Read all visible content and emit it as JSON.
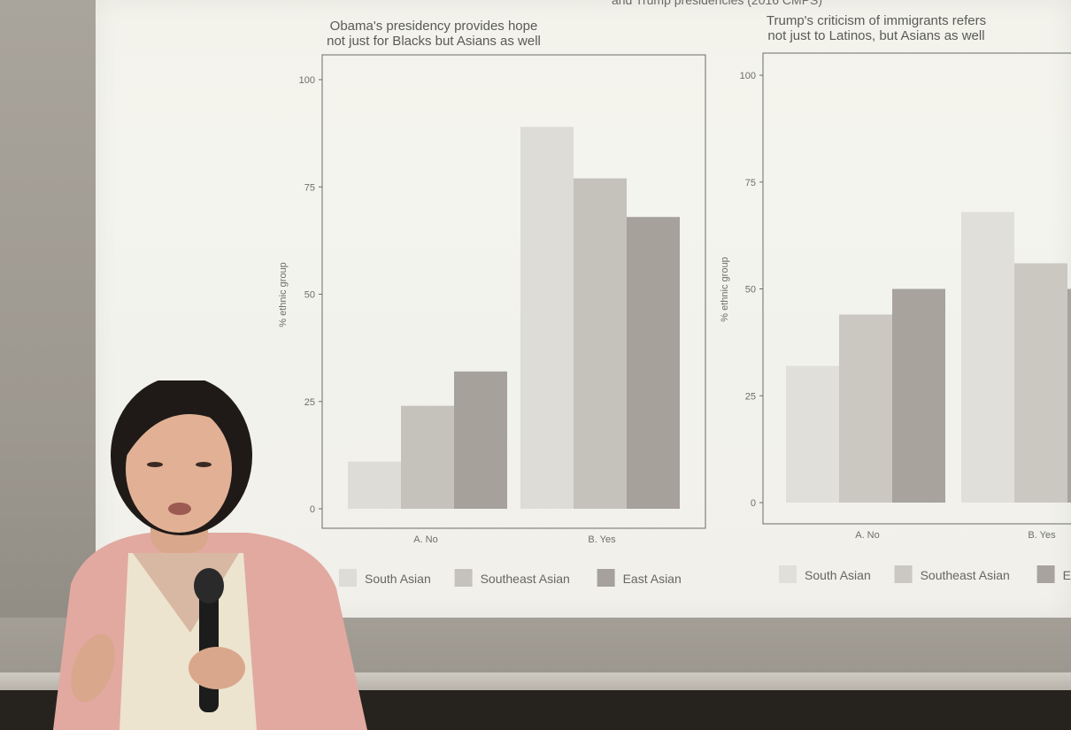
{
  "slide": {
    "cut_title": "and Trump presidencies (2016 CMPS)"
  },
  "chart_data": [
    {
      "type": "bar",
      "title": "Obama's presidency provides hope\nnot just for Blacks but Asians as well",
      "ylabel": "% ethnic group",
      "ylim": [
        0,
        100
      ],
      "yticks": [
        0,
        25,
        50,
        75,
        100
      ],
      "categories": [
        "A. No",
        "B. Yes"
      ],
      "series": [
        {
          "name": "South Asian",
          "values": [
            11,
            89
          ]
        },
        {
          "name": "Southeast Asian",
          "values": [
            24,
            77
          ]
        },
        {
          "name": "East Asian",
          "values": [
            32,
            68
          ]
        }
      ],
      "legend_position": "bottom",
      "colors": [
        "#dddcd6",
        "#c4c2bb",
        "#a6a19b"
      ]
    },
    {
      "type": "bar",
      "title": "Trump's criticism of immigrants refers\nnot just to Latinos, but Asians as well",
      "ylabel": "% ethnic group",
      "ylim": [
        0,
        100
      ],
      "yticks": [
        0,
        25,
        50,
        75,
        100
      ],
      "categories": [
        "A. No",
        "B. Yes"
      ],
      "series": [
        {
          "name": "South Asian",
          "values": [
            32,
            68
          ]
        },
        {
          "name": "Southeast Asian",
          "values": [
            44,
            56
          ]
        },
        {
          "name": "East Asian",
          "values": [
            50,
            50
          ]
        }
      ],
      "legend_position": "bottom",
      "colors": [
        "#e0dfd9",
        "#cac8c1",
        "#a8a39d"
      ]
    }
  ]
}
